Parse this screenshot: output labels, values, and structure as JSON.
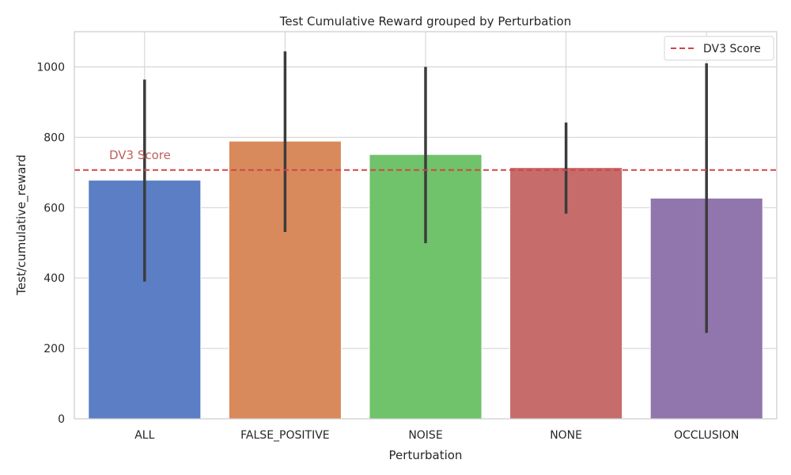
{
  "chart_data": {
    "type": "bar",
    "title": "Test Cumulative Reward grouped by Perturbation",
    "xlabel": "Perturbation",
    "ylabel": "Test/cumulative_reward",
    "ylim": [
      0,
      1100
    ],
    "yticks": [
      0,
      200,
      400,
      600,
      800,
      1000
    ],
    "grid": true,
    "categories": [
      "ALL",
      "FALSE_POSITIVE",
      "NOISE",
      "NONE",
      "OCCLUSION"
    ],
    "values": [
      678,
      789,
      751,
      714,
      627
    ],
    "error_low": [
      390,
      531,
      499,
      583,
      244
    ],
    "error_high": [
      964,
      1044,
      1000,
      842,
      1010
    ],
    "colors": [
      "#5b7ec4",
      "#d98a5c",
      "#70c26b",
      "#c66c6b",
      "#9175ad"
    ],
    "reference_line": {
      "value": 707,
      "label": "DV3 Score",
      "color": "#d1454a",
      "annotation": "DV3 Score"
    },
    "legend": {
      "position": "top-right",
      "entries": [
        "DV3 Score"
      ]
    }
  }
}
